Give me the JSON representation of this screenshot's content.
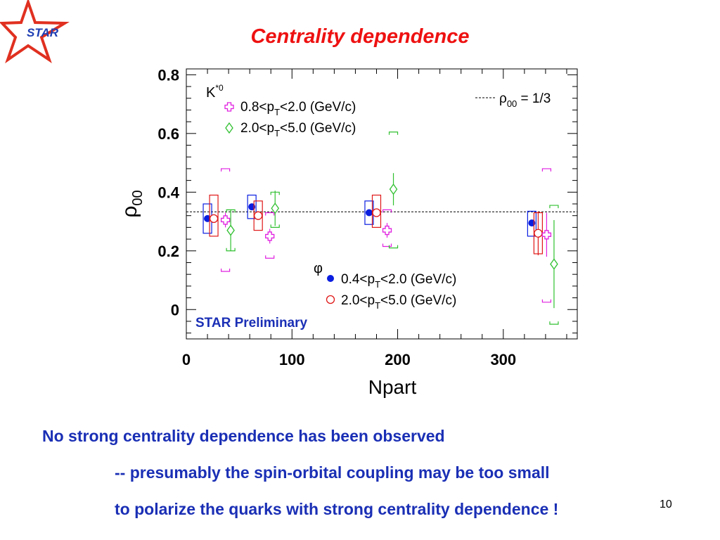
{
  "slide": {
    "title": "Centrality dependence",
    "logo_text": "STAR",
    "notes": [
      "No strong centrality dependence has been observed",
      "-- presumably the spin-orbital coupling may be too small",
      "to polarize the quarks with strong centrality dependence !"
    ],
    "page_number": "10"
  },
  "colors": {
    "title": "#ee1111",
    "notes": "#1a2fb5",
    "logo": "#e03020",
    "phi_low": "#0a1ee0",
    "phi_high": "#e01818",
    "kstar_low": "#e020e0",
    "kstar_high": "#30c030"
  },
  "chart_data": {
    "type": "scatter",
    "xlabel": "Npart",
    "ylabel": "ρ00",
    "xlim": [
      0,
      370
    ],
    "ylim": [
      -0.1,
      0.82
    ],
    "x_ticks": [
      "0",
      "100",
      "200",
      "300"
    ],
    "y_ticks": [
      "0",
      "0.2",
      "0.4",
      "0.6",
      "0.8"
    ],
    "reference_line": {
      "value": 0.333,
      "label": "ρ00 = 1/3"
    },
    "annotation": "STAR Preliminary",
    "legend_kstar_header": "K*0",
    "legend_phi_header": "φ",
    "series": [
      {
        "name": "0.4<pT<2.0 (GeV/c)",
        "particle": "φ",
        "marker": "filled-circle",
        "color": "#0a1ee0",
        "points": [
          {
            "x": 20,
            "y": 0.31,
            "err": 0.0,
            "sys": [
              0.26,
              0.36
            ]
          },
          {
            "x": 62,
            "y": 0.35,
            "err": 0.0,
            "sys": [
              0.31,
              0.39
            ]
          },
          {
            "x": 173,
            "y": 0.33,
            "err": 0.0,
            "sys": [
              0.29,
              0.37
            ]
          },
          {
            "x": 327,
            "y": 0.295,
            "err": 0.0,
            "sys": [
              0.25,
              0.335
            ]
          }
        ]
      },
      {
        "name": "2.0<pT<5.0 (GeV/c)",
        "particle": "φ",
        "marker": "open-circle",
        "color": "#e01818",
        "points": [
          {
            "x": 26,
            "y": 0.31,
            "err": 0.0,
            "sys": [
              0.25,
              0.39
            ]
          },
          {
            "x": 68,
            "y": 0.32,
            "err": 0.0,
            "sys": [
              0.27,
              0.37
            ]
          },
          {
            "x": 180,
            "y": 0.33,
            "err": 0.0,
            "sys": [
              0.28,
              0.39
            ]
          },
          {
            "x": 333,
            "y": 0.26,
            "err": 0.075,
            "sys": [
              0.19,
              0.33
            ]
          }
        ]
      },
      {
        "name": "0.8<pT<2.0 (GeV/c)",
        "particle": "K*0",
        "marker": "open-cross",
        "color": "#e020e0",
        "points": [
          {
            "x": 37,
            "y": 0.305,
            "err": 0.025,
            "sys": [
              0.13,
              0.48
            ]
          },
          {
            "x": 79,
            "y": 0.25,
            "err": 0.025,
            "sys": [
              0.175,
              0.33
            ]
          },
          {
            "x": 190,
            "y": 0.27,
            "err": 0.025,
            "sys": [
              0.215,
              0.34
            ]
          },
          {
            "x": 341,
            "y": 0.255,
            "err": 0.075,
            "sys": [
              0.025,
              0.48
            ]
          }
        ]
      },
      {
        "name": "2.0<pT<5.0 (GeV/c)",
        "particle": "K*0",
        "marker": "open-diamond",
        "color": "#30c030",
        "points": [
          {
            "x": 42,
            "y": 0.27,
            "err": 0.07,
            "sys": [
              0.2,
              0.34
            ]
          },
          {
            "x": 84,
            "y": 0.345,
            "err": 0.06,
            "sys": [
              0.28,
              0.4
            ]
          },
          {
            "x": 196,
            "y": 0.41,
            "err": 0.055,
            "sys": [
              0.21,
              0.605
            ]
          },
          {
            "x": 348,
            "y": 0.155,
            "err": 0.15,
            "sys": [
              -0.05,
              0.355
            ]
          }
        ]
      }
    ]
  }
}
